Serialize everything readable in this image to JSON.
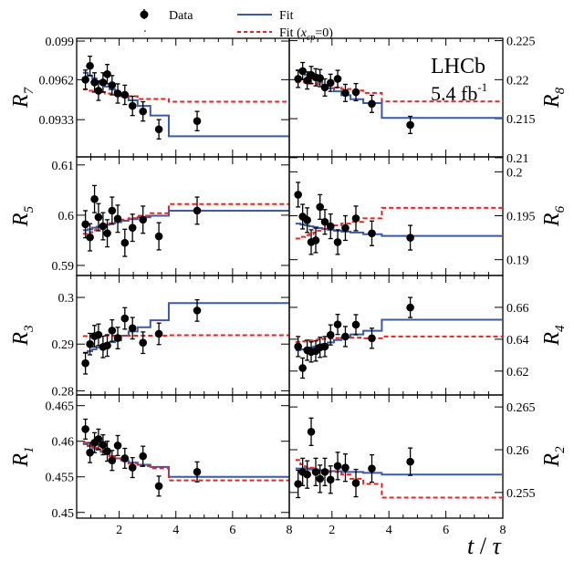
{
  "chart_data": {
    "type": "scatter",
    "xlabel": {
      "var": "t",
      "sep": " / ",
      "unit": "τ"
    },
    "xlim": [
      0.5,
      8
    ],
    "xticks": [
      2,
      4,
      6,
      8
    ],
    "grid": false,
    "legend": {
      "placement": "top",
      "data_label": "Data",
      "fit_label": "Fit",
      "fit0_label_pre": "Fit (",
      "fit0_label_var": "x",
      "fit0_label_sub": "cp",
      "fit0_label_post": "=0)"
    },
    "annotation": {
      "experiment": "LHCb",
      "lumi": "5.4 fb",
      "lumi_sup": "-1"
    },
    "colors": {
      "data": "#000000",
      "fit": "#3a5aa8",
      "fit_xcp0": "#ee2222"
    },
    "bin_edges": [
      0.72,
      0.89,
      1.05,
      1.2,
      1.35,
      1.5,
      1.66,
      1.85,
      2.07,
      2.33,
      2.65,
      3.1,
      3.75,
      8
    ],
    "t": [
      0.81,
      0.97,
      1.13,
      1.27,
      1.43,
      1.58,
      1.75,
      1.95,
      2.2,
      2.47,
      2.84,
      3.4,
      4.75
    ],
    "panels": [
      {
        "label": "R",
        "sub": "7",
        "col": "left",
        "row": 0,
        "ylim": [
          0.0906,
          0.0992
        ],
        "yticks": [
          "0.0933",
          "0.0962",
          "0.099"
        ],
        "yerr": 0.0007,
        "data": [
          0.0962,
          0.0972,
          0.096,
          0.0954,
          0.096,
          0.0966,
          0.0958,
          0.0952,
          0.0951,
          0.0943,
          0.0939,
          0.0926,
          0.0932
        ],
        "fit": [
          0.0967,
          0.0965,
          0.0963,
          0.0961,
          0.0959,
          0.0957,
          0.0955,
          0.0952,
          0.095,
          0.0947,
          0.0943,
          0.0936,
          0.0921
        ],
        "fit_xcp0": [
          0.0955,
          0.0954,
          0.0954,
          0.0953,
          0.0953,
          0.0952,
          0.0952,
          0.0951,
          0.095,
          0.095,
          0.0948,
          0.0948,
          0.0946
        ]
      },
      {
        "label": "R",
        "sub": "8",
        "col": "right",
        "row": 0,
        "ylim": [
          0.2101,
          0.2253
        ],
        "yticks": [
          "0.21",
          "0.215",
          "0.22",
          "0.225"
        ],
        "yerr": 0.0011,
        "data": [
          0.2201,
          0.2211,
          0.2199,
          0.2206,
          0.2203,
          0.2202,
          0.219,
          0.2196,
          0.2201,
          0.2183,
          0.2184,
          0.2169,
          0.2142
        ],
        "fit": [
          0.2212,
          0.2209,
          0.2206,
          0.2203,
          0.22,
          0.2197,
          0.2193,
          0.2189,
          0.2185,
          0.218,
          0.2175,
          0.217,
          0.2151
        ],
        "fit_xcp0": [
          0.2197,
          0.2197,
          0.2196,
          0.2195,
          0.2195,
          0.2194,
          0.2193,
          0.2192,
          0.219,
          0.2188,
          0.2186,
          0.2183,
          0.2172
        ]
      },
      {
        "label": "R",
        "sub": "5",
        "col": "left",
        "row": 1,
        "ylim": [
          0.588,
          0.6116
        ],
        "yticks": [
          "0.59",
          "0.6",
          "0.61"
        ],
        "yerr": 0.0027,
        "data": [
          0.5982,
          0.5956,
          0.6032,
          0.5996,
          0.5978,
          0.5964,
          0.6009,
          0.5993,
          0.5945,
          0.5975,
          0.5991,
          0.5958,
          0.6009
        ],
        "fit": [
          0.597,
          0.5972,
          0.5975,
          0.5977,
          0.5979,
          0.5981,
          0.5984,
          0.5986,
          0.5989,
          0.5992,
          0.5996,
          0.5999,
          0.6009
        ],
        "fit_xcp0": [
          0.5963,
          0.5966,
          0.597,
          0.5973,
          0.5976,
          0.598,
          0.5983,
          0.5987,
          0.5991,
          0.5994,
          0.5999,
          0.6004,
          0.6022
        ]
      },
      {
        "label": "R",
        "sub": "6",
        "col": "right",
        "row": 1,
        "ylim": [
          0.1882,
          0.2017
        ],
        "yticks": [
          "0.19",
          "0.195",
          "0.2"
        ],
        "yerr": 0.0014,
        "data": [
          0.1974,
          0.1949,
          0.1945,
          0.192,
          0.1922,
          0.196,
          0.1943,
          0.1938,
          0.192,
          0.1936,
          0.1947,
          0.193,
          0.1925
        ],
        "fit": [
          0.1941,
          0.194,
          0.1939,
          0.1938,
          0.1937,
          0.1936,
          0.1935,
          0.1934,
          0.1933,
          0.1932,
          0.1931,
          0.1929,
          0.1927
        ],
        "fit_xcp0": [
          0.1924,
          0.1926,
          0.1928,
          0.1929,
          0.1931,
          0.1933,
          0.1935,
          0.1937,
          0.1939,
          0.1941,
          0.1943,
          0.1947,
          0.1959
        ]
      },
      {
        "label": "R",
        "sub": "3",
        "col": "left",
        "row": 2,
        "ylim": [
          0.2791,
          0.3047
        ],
        "yticks": [
          "0.28",
          "0.29",
          "0.3"
        ],
        "yerr": 0.0023,
        "data": [
          0.2859,
          0.29,
          0.2917,
          0.292,
          0.2894,
          0.2897,
          0.2929,
          0.2913,
          0.2955,
          0.2934,
          0.2903,
          0.2922,
          0.2972
        ],
        "fit": [
          0.2881,
          0.2885,
          0.2889,
          0.2893,
          0.2897,
          0.29,
          0.2904,
          0.2908,
          0.2918,
          0.2927,
          0.2936,
          0.2951,
          0.2988
        ],
        "fit_xcp0": [
          0.2917,
          0.2917,
          0.2918,
          0.2918,
          0.2918,
          0.2918,
          0.2918,
          0.2918,
          0.2918,
          0.2918,
          0.2918,
          0.2918,
          0.2919
        ]
      },
      {
        "label": "R",
        "sub": "4",
        "col": "right",
        "row": 2,
        "ylim": [
          0.605,
          0.68
        ],
        "yticks": [
          "0.62",
          "0.64",
          "0.66"
        ],
        "yerr": 0.0063,
        "data": [
          0.6354,
          0.6219,
          0.6331,
          0.632,
          0.6326,
          0.6349,
          0.6354,
          0.6427,
          0.6493,
          0.6417,
          0.6491,
          0.6406,
          0.6599
        ],
        "fit": [
          0.6331,
          0.6336,
          0.6342,
          0.6348,
          0.6355,
          0.6362,
          0.637,
          0.638,
          0.6395,
          0.6411,
          0.643,
          0.6453,
          0.6522
        ],
        "fit_xcp0": [
          0.6383,
          0.6386,
          0.6389,
          0.6392,
          0.6396,
          0.6399,
          0.6402,
          0.6405,
          0.6407,
          0.6409,
          0.641,
          0.6406,
          0.6417
        ]
      },
      {
        "label": "R",
        "sub": "1",
        "col": "left",
        "row": 3,
        "ylim": [
          0.4492,
          0.4665
        ],
        "yticks": [
          "0.45",
          "0.455",
          "0.46",
          "0.465"
        ],
        "yerr": 0.0014,
        "data": [
          0.4617,
          0.4584,
          0.4598,
          0.4603,
          0.4595,
          0.4586,
          0.4573,
          0.4594,
          0.4576,
          0.4563,
          0.4579,
          0.4537,
          0.4557
        ],
        "fit": [
          0.4596,
          0.4593,
          0.459,
          0.4588,
          0.4585,
          0.4582,
          0.4579,
          0.4576,
          0.4573,
          0.457,
          0.4567,
          0.4564,
          0.455
        ],
        "fit_xcp0": [
          0.4598,
          0.4594,
          0.4591,
          0.4588,
          0.4585,
          0.4582,
          0.4579,
          0.4576,
          0.4572,
          0.4569,
          0.4565,
          0.4562,
          0.4545
        ]
      },
      {
        "label": "R",
        "sub": "2",
        "col": "right",
        "row": 3,
        "ylim": [
          0.252,
          0.2664
        ],
        "yticks": [
          "0.255",
          "0.26",
          "0.265"
        ],
        "yerr": 0.0016,
        "data": [
          0.256,
          0.2574,
          0.2571,
          0.2621,
          0.2574,
          0.2566,
          0.2574,
          0.2565,
          0.2581,
          0.2579,
          0.2561,
          0.2578,
          0.2586
        ],
        "fit": [
          0.2578,
          0.2578,
          0.2578,
          0.2577,
          0.2577,
          0.2576,
          0.2576,
          0.2575,
          0.2575,
          0.2574,
          0.2574,
          0.2573,
          0.2571
        ],
        "fit_xcp0": [
          0.2588,
          0.2583,
          0.258,
          0.2579,
          0.2577,
          0.2576,
          0.2575,
          0.2574,
          0.2574,
          0.2571,
          0.2566,
          0.256,
          0.2544
        ]
      }
    ]
  }
}
